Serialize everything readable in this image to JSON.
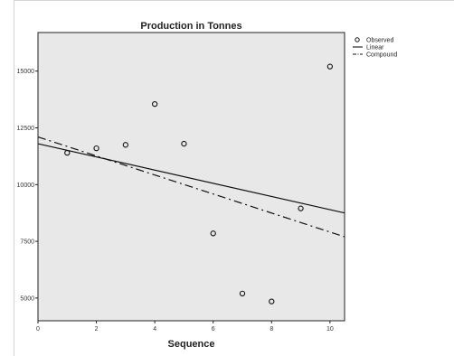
{
  "chart_data": {
    "type": "scatter",
    "title": "Production in Tonnes",
    "xlabel": "Sequence",
    "ylabel": "",
    "xlim": [
      0,
      10.5
    ],
    "ylim": [
      4000,
      16700
    ],
    "x_ticks": [
      "0",
      "2",
      "4",
      "6",
      "8",
      "10"
    ],
    "x_tick_values": [
      0,
      2,
      4,
      6,
      8,
      10
    ],
    "y_ticks": [
      "5000",
      "7500",
      "10000",
      "12500",
      "15000"
    ],
    "y_tick_values": [
      5000,
      7500,
      10000,
      12500,
      15000
    ],
    "grid": false,
    "legend_position": "top-right",
    "plot_background": "#e8e8e8",
    "series": [
      {
        "name": "Observed",
        "kind": "points",
        "marker": "open-circle",
        "x": [
          1,
          2,
          3,
          4,
          5,
          6,
          7,
          8,
          9,
          10
        ],
        "y": [
          11400,
          11600,
          11750,
          13550,
          11800,
          7850,
          5200,
          4850,
          8950,
          15200
        ]
      },
      {
        "name": "Linear",
        "kind": "line",
        "style": "solid",
        "x": [
          0,
          10.5
        ],
        "y": [
          11800,
          8750
        ]
      },
      {
        "name": "Compound",
        "kind": "line",
        "style": "dash-dot",
        "x": [
          0,
          10.5
        ],
        "y": [
          12100,
          7700
        ]
      }
    ]
  }
}
